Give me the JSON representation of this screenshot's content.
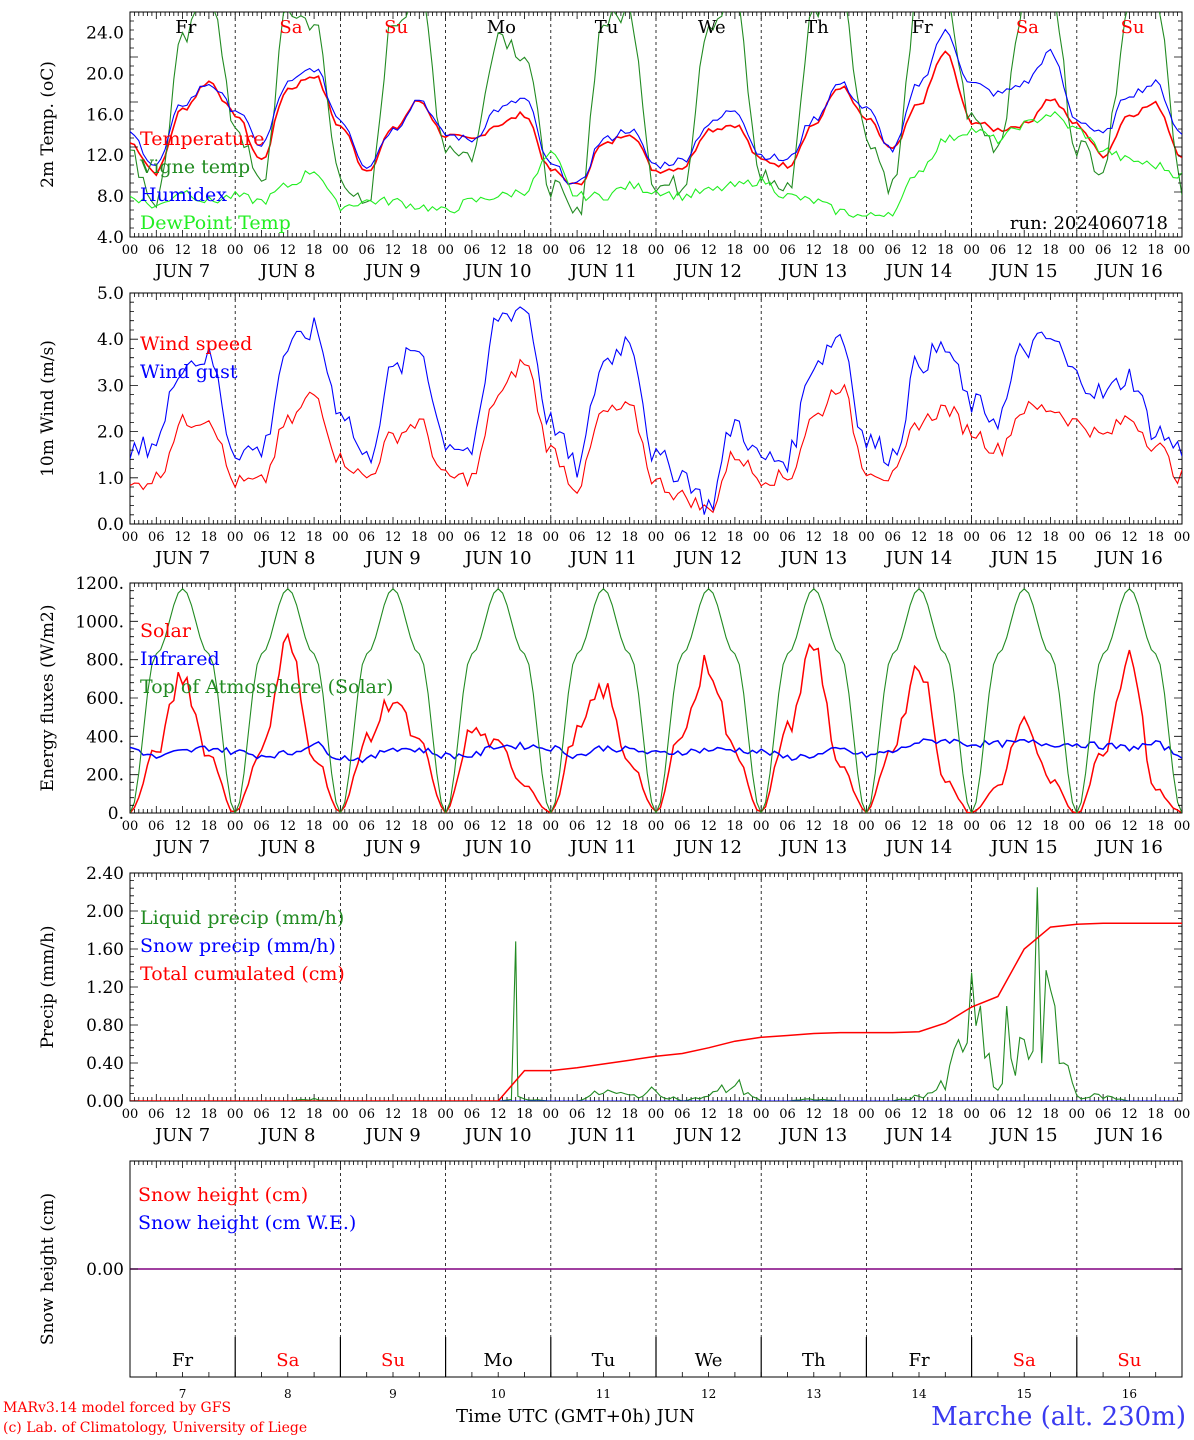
{
  "days": [
    {
      "dow": "Fr",
      "date": "7",
      "weekend": false
    },
    {
      "dow": "Sa",
      "date": "8",
      "weekend": true
    },
    {
      "dow": "Su",
      "date": "9",
      "weekend": true
    },
    {
      "dow": "Mo",
      "date": "10",
      "weekend": false
    },
    {
      "dow": "Tu",
      "date": "11",
      "weekend": false
    },
    {
      "dow": "We",
      "date": "12",
      "weekend": false
    },
    {
      "dow": "Th",
      "date": "13",
      "weekend": false
    },
    {
      "dow": "Fr",
      "date": "14",
      "weekend": false
    },
    {
      "dow": "Sa",
      "date": "15",
      "weekend": true
    },
    {
      "dow": "Su",
      "date": "16",
      "weekend": true
    }
  ],
  "month": "JUN",
  "hour_ticks": [
    "00",
    "06",
    "12",
    "18"
  ],
  "colors": {
    "red": "#ff0000",
    "green": "#228b22",
    "blue": "#0000ff",
    "lightgreen": "#22ee22",
    "purple": "#800080",
    "black": "#000000"
  },
  "footer": {
    "credit1": "MARv3.14 model forced by GFS",
    "credit2": "(c) Lab. of Climatology, University of Liege",
    "xlabel": "Time UTC (GMT+0h) JUN",
    "station": "Marche (alt. 230m)"
  },
  "chart_data": [
    {
      "type": "line",
      "ylabel": "2m Temp. (oC)",
      "ylim": [
        4,
        26
      ],
      "ytick_labels": [
        "4.0",
        "8.0",
        "12.0",
        "16.0",
        "20.0",
        "24.0"
      ],
      "annotation": "run: 2024060718",
      "x_unit": "hours since 2024-06-07 00 UTC (6-hourly)",
      "series": [
        {
          "name": "Temperature",
          "color": "red",
          "values": [
            13.2,
            10.3,
            16.5,
            19.2,
            16.0,
            11.5,
            18.5,
            19.8,
            14.8,
            10.5,
            14.5,
            17.3,
            13.9,
            13.5,
            15.0,
            16.0,
            10.5,
            9.0,
            13.0,
            14.2,
            10.5,
            10.8,
            14.5,
            15.0,
            11.5,
            11.0,
            15.0,
            18.7,
            15.5,
            12.5,
            17.0,
            22.0,
            15.3,
            14.5,
            15.0,
            17.5,
            15.0,
            12.0,
            16.0,
            17.0,
            12.0
          ]
        },
        {
          "name": "Vigne temp",
          "color": "green",
          "values": [
            12.0,
            7.5,
            23.0,
            28.0,
            15.0,
            9.0,
            26.0,
            25.0,
            10.0,
            6.5,
            25.0,
            28.0,
            13.0,
            12.0,
            24.0,
            22.0,
            9.0,
            6.0,
            25.0,
            26.0,
            9.0,
            9.0,
            25.0,
            27.0,
            10.0,
            8.5,
            26.0,
            29.0,
            14.0,
            9.0,
            28.0,
            27.0,
            15.5,
            13.0,
            27.0,
            28.0,
            13.0,
            11.0,
            27.0,
            28.0,
            8.5
          ]
        },
        {
          "name": "Humidex",
          "color": "blue",
          "values": [
            14.0,
            11.0,
            17.0,
            19.0,
            16.5,
            13.0,
            19.0,
            20.5,
            15.5,
            11.0,
            14.5,
            17.5,
            14.0,
            13.5,
            16.5,
            17.5,
            11.0,
            9.0,
            13.5,
            14.5,
            11.0,
            11.5,
            15.0,
            16.5,
            12.0,
            11.5,
            15.5,
            19.0,
            16.5,
            12.5,
            19.0,
            24.0,
            19.0,
            18.0,
            19.0,
            22.0,
            15.5,
            14.0,
            18.0,
            19.0,
            14.0
          ]
        },
        {
          "name": "DewPoint Temp",
          "color": "lightgreen",
          "values": [
            8.0,
            7.0,
            8.5,
            7.5,
            8.0,
            7.5,
            9.0,
            10.5,
            7.0,
            7.5,
            7.5,
            7.0,
            6.5,
            7.5,
            8.0,
            8.5,
            12.0,
            8.0,
            8.0,
            9.0,
            8.5,
            8.0,
            8.5,
            9.0,
            9.5,
            8.0,
            7.5,
            6.5,
            6.0,
            6.5,
            10.5,
            13.5,
            14.5,
            13.5,
            15.0,
            16.0,
            14.5,
            12.5,
            11.5,
            11.0,
            10.0
          ]
        }
      ]
    },
    {
      "type": "line",
      "ylabel": "10m Wind (m/s)",
      "ylim": [
        0,
        5
      ],
      "ytick_labels": [
        "0.0",
        "1.0",
        "2.0",
        "3.0",
        "4.0",
        "5.0"
      ],
      "series": [
        {
          "name": "Wind speed",
          "color": "red",
          "values": [
            0.8,
            1.0,
            2.2,
            2.3,
            0.9,
            0.9,
            2.2,
            2.8,
            1.4,
            1.0,
            1.9,
            2.2,
            1.0,
            1.0,
            2.8,
            3.5,
            1.6,
            0.8,
            2.4,
            2.5,
            0.9,
            0.6,
            0.3,
            1.5,
            1.0,
            1.0,
            2.3,
            3.0,
            1.2,
            1.0,
            2.2,
            2.5,
            2.0,
            1.6,
            2.5,
            2.5,
            2.2,
            1.9,
            2.3,
            1.7,
            1.0
          ]
        },
        {
          "name": "Wind gust",
          "color": "blue",
          "values": [
            1.5,
            1.8,
            3.5,
            3.6,
            1.6,
            1.6,
            3.8,
            4.2,
            2.5,
            1.4,
            3.3,
            3.8,
            1.8,
            1.6,
            4.5,
            4.7,
            2.2,
            1.2,
            3.5,
            4.0,
            1.4,
            1.1,
            0.4,
            2.2,
            1.4,
            1.4,
            3.5,
            4.1,
            1.8,
            1.5,
            3.5,
            3.8,
            2.6,
            2.3,
            3.8,
            4.0,
            3.2,
            2.8,
            3.2,
            2.0,
            1.6
          ]
        }
      ]
    },
    {
      "type": "line",
      "ylabel": "Energy fluxes (W/m2)",
      "ylim": [
        0,
        1200
      ],
      "ytick_labels": [
        "0.",
        "200.",
        "400.",
        "600.",
        "800.",
        "1000.",
        "1200."
      ],
      "series": [
        {
          "name": "Solar",
          "color": "red",
          "values": [
            0,
            320,
            720,
            300,
            0,
            330,
            880,
            300,
            0,
            380,
            600,
            360,
            0,
            430,
            350,
            150,
            0,
            420,
            650,
            270,
            0,
            440,
            780,
            320,
            0,
            440,
            870,
            240,
            0,
            350,
            800,
            170,
            0,
            140,
            480,
            170,
            0,
            320,
            850,
            120,
            0
          ]
        },
        {
          "name": "Infrared",
          "color": "blue",
          "values": [
            340,
            290,
            320,
            340,
            320,
            300,
            310,
            360,
            290,
            280,
            340,
            330,
            300,
            300,
            350,
            350,
            340,
            300,
            340,
            330,
            310,
            320,
            330,
            330,
            320,
            290,
            300,
            330,
            300,
            320,
            370,
            380,
            360,
            360,
            370,
            360,
            360,
            350,
            340,
            360,
            300
          ]
        },
        {
          "name": "Top of Atmosphere (Solar)",
          "color": "green",
          "values": [
            0,
            830,
            1170,
            830,
            0,
            830,
            1170,
            830,
            0,
            830,
            1170,
            830,
            0,
            830,
            1170,
            830,
            0,
            830,
            1170,
            830,
            0,
            830,
            1170,
            830,
            0,
            830,
            1170,
            830,
            0,
            830,
            1170,
            830,
            0,
            830,
            1170,
            830,
            0,
            830,
            1170,
            830,
            0
          ]
        }
      ]
    },
    {
      "type": "line",
      "ylabel": "Precip (mm/h)",
      "ylim": [
        0,
        2.4
      ],
      "ytick_labels": [
        "0.00",
        "0.40",
        "0.80",
        "1.20",
        "1.60",
        "2.00",
        "2.40"
      ],
      "series": [
        {
          "name": "Liquid precip (mm/h)",
          "color": "green",
          "values": [
            0,
            0,
            0,
            0,
            0,
            0,
            0,
            0.02,
            0,
            0,
            0,
            0,
            0,
            0,
            0,
            0.02,
            0,
            0,
            0.1,
            0.05,
            0.1,
            0,
            0.05,
            0.18,
            0,
            0,
            0.02,
            0,
            0,
            0,
            0.05,
            0.15,
            0.9,
            0.1,
            0.5,
            1.0,
            0.05,
            0.05,
            0,
            0,
            0
          ]
        },
        {
          "name": "Snow precip (mm/h)",
          "color": "blue",
          "values": [
            0,
            0,
            0,
            0,
            0,
            0,
            0,
            0,
            0,
            0,
            0,
            0,
            0,
            0,
            0,
            0,
            0,
            0,
            0,
            0,
            0,
            0,
            0,
            0,
            0,
            0,
            0,
            0,
            0,
            0,
            0,
            0,
            0,
            0,
            0,
            0,
            0,
            0,
            0,
            0,
            0
          ]
        },
        {
          "name": "Total cumulated (cm)",
          "color": "red",
          "values": [
            0,
            0,
            0,
            0,
            0,
            0,
            0,
            0,
            0,
            0,
            0,
            0,
            0,
            0,
            0,
            0.32,
            0.32,
            0.35,
            0.39,
            0.43,
            0.47,
            0.5,
            0.56,
            0.63,
            0.67,
            0.69,
            0.71,
            0.72,
            0.72,
            0.72,
            0.73,
            0.82,
            0.99,
            1.1,
            1.6,
            1.83,
            1.86,
            1.87,
            1.87,
            1.87,
            1.87
          ]
        }
      ]
    },
    {
      "type": "line",
      "ylabel": "Snow height (cm)",
      "ytick_labels": [
        "0.00"
      ],
      "series": [
        {
          "name": "Snow height (cm)",
          "color": "red",
          "values": [
            0,
            0
          ]
        },
        {
          "name": "Snow height (cm W.E.)",
          "color": "blue",
          "values": [
            0,
            0
          ]
        }
      ]
    }
  ]
}
